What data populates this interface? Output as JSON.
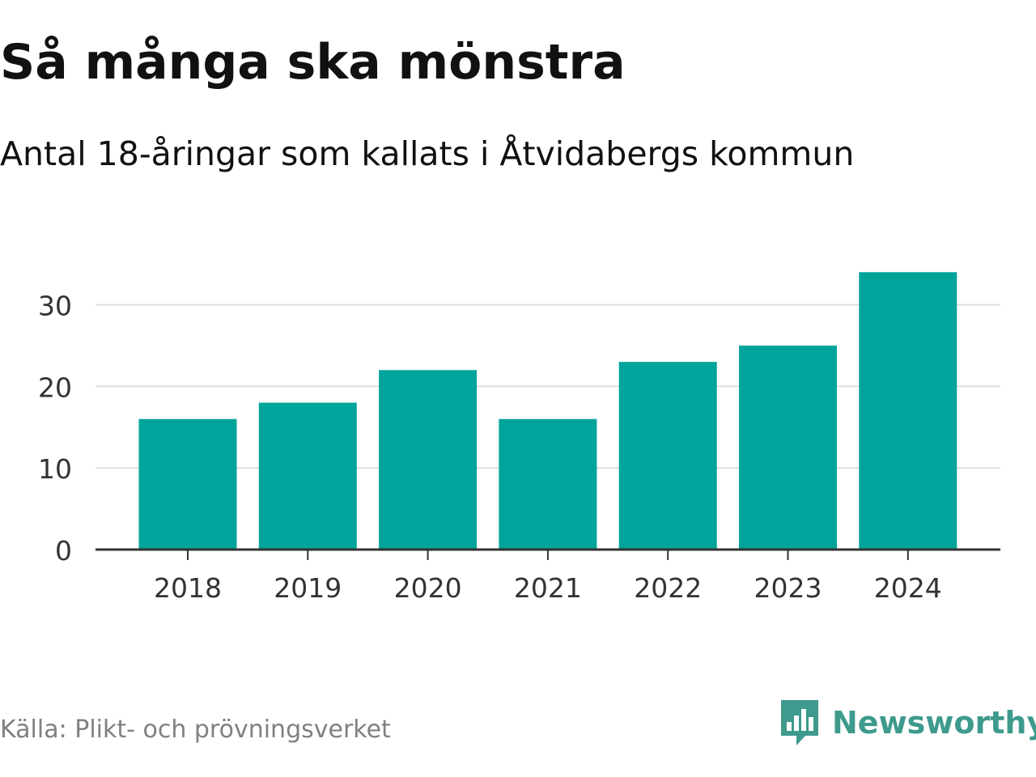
{
  "chart_data": {
    "type": "bar",
    "title": "Så många ska mönstra",
    "subtitle": "Antal 18-åringar som kallats i Åtvidabergs kommun",
    "categories": [
      "2018",
      "2019",
      "2020",
      "2021",
      "2022",
      "2023",
      "2024"
    ],
    "values": [
      16,
      18,
      22,
      16,
      23,
      25,
      34
    ],
    "xlabel": "",
    "ylabel": "",
    "ylim": [
      0,
      35
    ],
    "yticks": [
      0,
      10,
      20,
      30
    ],
    "grid": true,
    "bar_color": "#00a49a"
  },
  "source": "Källa: Plikt- och prövningsverket",
  "brand": {
    "name": "Newsworthy",
    "color": "#3d9a8c",
    "icon": "newsworthy-logo-icon"
  }
}
